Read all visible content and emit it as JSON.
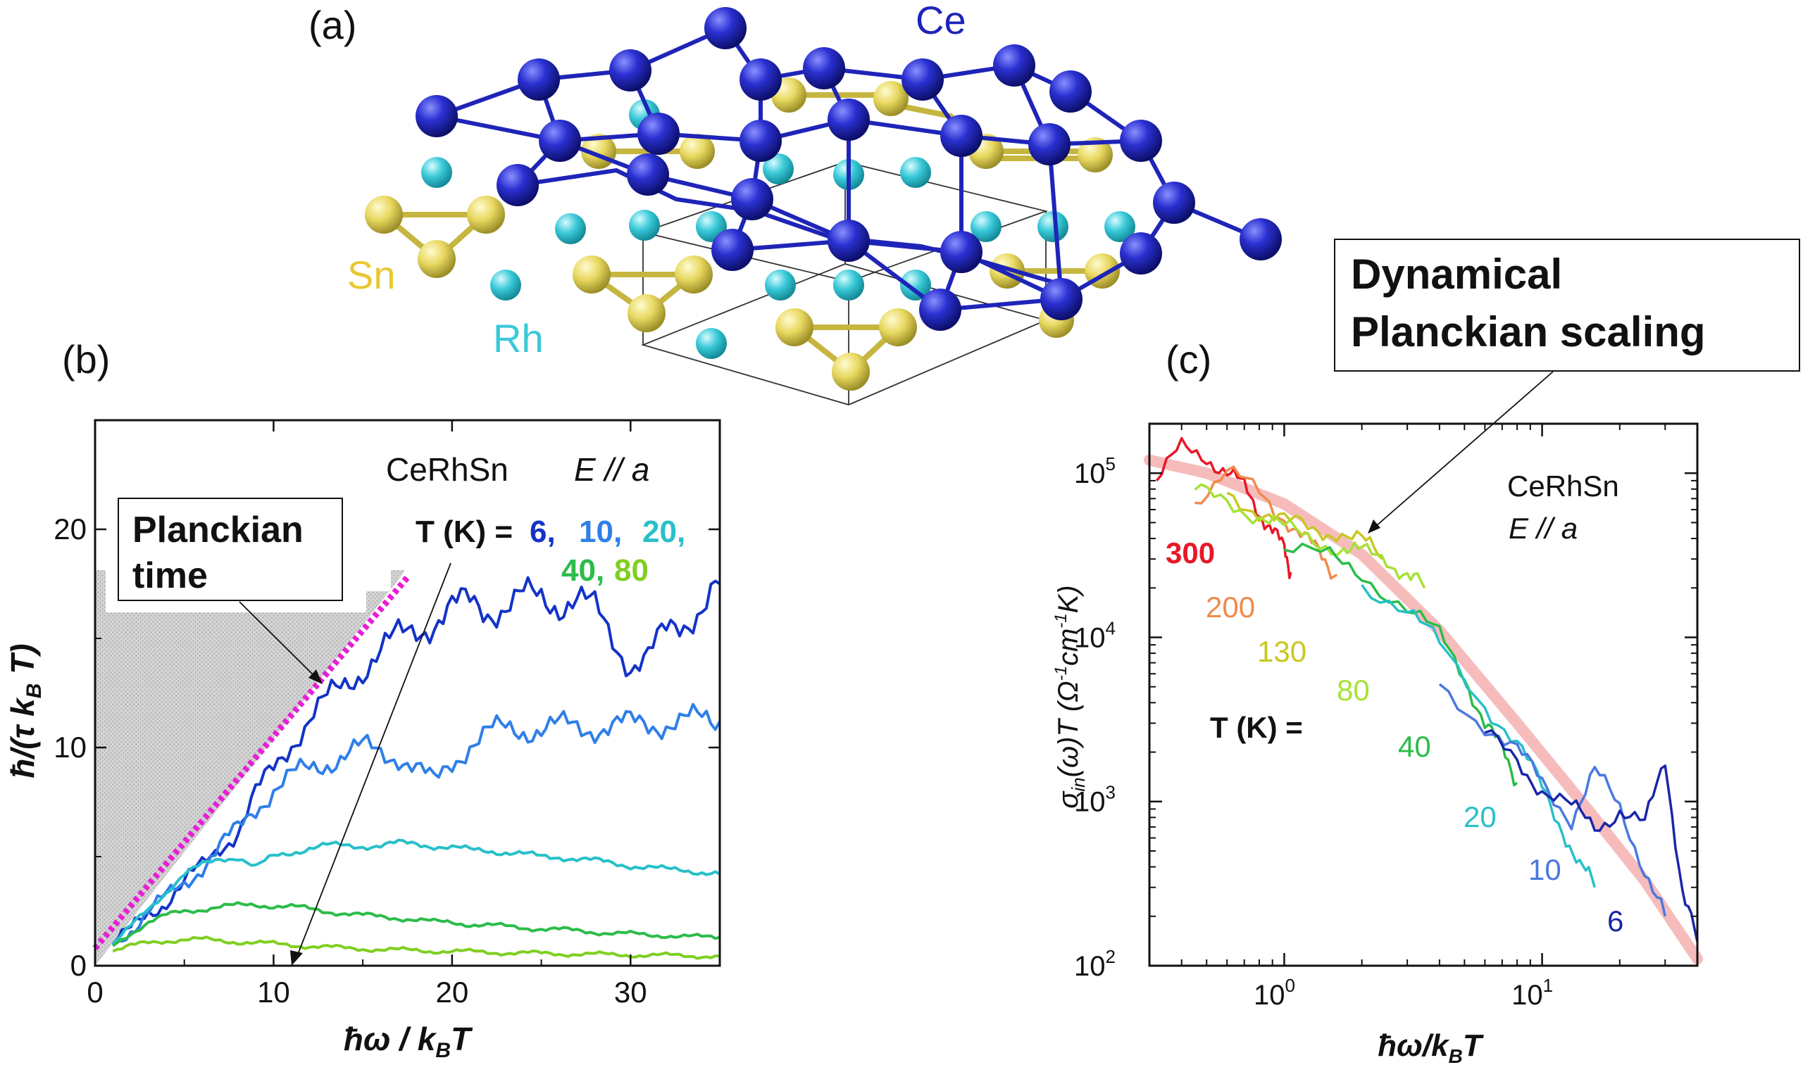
{
  "colors": {
    "Ce": "#1f24b8",
    "Sn": "#e8d860",
    "Rh": "#39c9d8",
    "T6": "#1433c8",
    "T10": "#2f7fe8",
    "T20": "#28c0c8",
    "T40": "#2cbc4a",
    "T80": "#7fcf22",
    "T130": "#c8c822",
    "T200": "#f08a4a",
    "T300": "#e81828",
    "planck": "#e81ed6",
    "fit": "#f4b0b0"
  },
  "panel_a": {
    "label": "(a)",
    "atoms": {
      "ce": "Ce",
      "sn": "Sn",
      "rh": "Rh"
    }
  },
  "panel_b": {
    "label": "(b)",
    "material": "CeRhSn",
    "field": "E // a",
    "temps_prefix": "T (K) =",
    "temps": [
      "6,",
      "10,",
      "20,",
      "40,",
      "80"
    ],
    "callout": [
      "Planckian",
      "time"
    ],
    "ylabel": "ħ/(τ k_B T)",
    "xlabel": "ħω / k_B T",
    "xticks": [
      "0",
      "10",
      "20",
      "30"
    ],
    "yticks": [
      "0",
      "10",
      "20"
    ]
  },
  "panel_c": {
    "label": "(c)",
    "material": "CeRhSn",
    "field": "E // a",
    "temps_prefix": "T (K) =",
    "temp_labels": [
      "300",
      "200",
      "130",
      "80",
      "40",
      "20",
      "10",
      "6"
    ],
    "callout": [
      "Dynamical",
      "Planckian scaling"
    ],
    "ylabel": "σin(ω)T (Ω⁻¹cm⁻¹K)",
    "xlabel": "ħω/k_B T",
    "xticks": [
      "10^0",
      "10^1"
    ],
    "yticks": [
      "10^2",
      "10^3",
      "10^4",
      "10^5"
    ]
  },
  "chart_data": [
    {
      "type": "line",
      "panel": "b",
      "xlabel": "ħω / k_B T",
      "ylabel": "ħ/(τ k_B T)",
      "xlim": [
        0,
        35
      ],
      "ylim": [
        0,
        25
      ],
      "legend": "T (K) = 6, 10, 20, 40, 80",
      "series": [
        {
          "name": "6",
          "color": "#1433c8",
          "x": [
            1,
            2,
            3,
            4,
            5,
            6,
            7,
            8,
            9,
            10,
            11,
            12,
            13,
            14,
            15,
            16,
            17,
            18,
            19,
            20,
            21,
            22,
            23,
            24,
            25,
            26,
            27,
            28,
            29,
            30,
            31,
            32,
            33,
            34,
            35
          ],
          "y": [
            1.0,
            1.6,
            2.4,
            3.0,
            3.8,
            4.5,
            5.5,
            6.2,
            7.8,
            9.0,
            10.3,
            11.3,
            12.1,
            12.9,
            13.7,
            14.4,
            15.0,
            15.5,
            15.8,
            16.3,
            16.6,
            16.4,
            16.5,
            16.8,
            16.8,
            16.7,
            16.9,
            16.2,
            15.0,
            13.9,
            14.1,
            15.2,
            15.8,
            16.6,
            17.5
          ]
        },
        {
          "name": "10",
          "color": "#2f7fe8",
          "x": [
            1,
            2,
            3,
            4,
            5,
            6,
            7,
            8,
            9,
            10,
            11,
            12,
            13,
            14,
            15,
            16,
            17,
            18,
            19,
            20,
            21,
            22,
            23,
            24,
            25,
            26,
            27,
            28,
            29,
            30,
            31,
            32,
            33,
            34,
            35
          ],
          "y": [
            1.0,
            1.7,
            2.5,
            3.1,
            3.8,
            4.6,
            5.4,
            6.2,
            7.3,
            8.1,
            8.6,
            9.0,
            9.4,
            9.7,
            9.9,
            9.8,
            9.7,
            9.0,
            8.3,
            9.4,
            10.2,
            10.6,
            10.8,
            10.9,
            10.9,
            10.9,
            10.9,
            11.0,
            11.0,
            11.0,
            11.1,
            11.2,
            11.2,
            11.2,
            11.2
          ]
        },
        {
          "name": "20",
          "color": "#28c0c8",
          "x": [
            1,
            2,
            3,
            4,
            5,
            6,
            7,
            8,
            9,
            10,
            11,
            12,
            13,
            14,
            15,
            16,
            17,
            18,
            19,
            20,
            21,
            22,
            23,
            24,
            25,
            26,
            27,
            28,
            29,
            30,
            31,
            32,
            33,
            34,
            35
          ],
          "y": [
            1.0,
            1.8,
            2.6,
            3.4,
            4.2,
            4.6,
            4.9,
            5.0,
            4.5,
            5.0,
            5.2,
            5.4,
            5.5,
            5.5,
            5.5,
            5.5,
            5.6,
            5.6,
            5.5,
            5.4,
            5.3,
            5.3,
            5.2,
            5.1,
            5.0,
            5.0,
            4.9,
            4.8,
            4.7,
            4.6,
            4.5,
            4.4,
            4.4,
            4.3,
            4.2
          ]
        },
        {
          "name": "40",
          "color": "#2cbc4a",
          "x": [
            1,
            2,
            3,
            4,
            5,
            6,
            7,
            8,
            9,
            10,
            11,
            12,
            13,
            14,
            15,
            16,
            17,
            18,
            19,
            20,
            21,
            22,
            23,
            24,
            25,
            26,
            27,
            28,
            29,
            30,
            31,
            32,
            33,
            34,
            35
          ],
          "y": [
            0.9,
            1.5,
            2.0,
            2.3,
            2.5,
            2.6,
            2.7,
            2.75,
            2.8,
            2.75,
            2.7,
            2.6,
            2.5,
            2.4,
            2.3,
            2.25,
            2.2,
            2.1,
            2.0,
            2.0,
            1.9,
            1.85,
            1.8,
            1.75,
            1.7,
            1.65,
            1.6,
            1.55,
            1.5,
            1.45,
            1.4,
            1.4,
            1.35,
            1.3,
            1.3
          ]
        },
        {
          "name": "80",
          "color": "#7fcf22",
          "x": [
            1,
            2,
            3,
            4,
            5,
            6,
            7,
            8,
            9,
            10,
            11,
            12,
            13,
            14,
            15,
            16,
            17,
            18,
            19,
            20,
            21,
            22,
            23,
            24,
            25,
            26,
            27,
            28,
            29,
            30,
            31,
            32,
            33,
            34,
            35
          ],
          "y": [
            0.7,
            0.9,
            1.05,
            1.15,
            1.2,
            1.2,
            1.15,
            1.1,
            1.05,
            1.0,
            0.95,
            0.9,
            0.85,
            0.8,
            0.78,
            0.75,
            0.72,
            0.7,
            0.68,
            0.66,
            0.64,
            0.62,
            0.6,
            0.58,
            0.56,
            0.55,
            0.54,
            0.52,
            0.5,
            0.5,
            0.48,
            0.47,
            0.46,
            0.45,
            0.44
          ]
        }
      ],
      "annotations": [
        {
          "text": "Planckian time",
          "type": "line_y_equals_x",
          "x": [
            0,
            17.5
          ],
          "y": [
            0.8,
            17.8
          ]
        }
      ]
    },
    {
      "type": "line",
      "panel": "c",
      "xscale": "log",
      "yscale": "log",
      "xlabel": "ħω/k_B T",
      "ylabel": "σin(ω)T (Ω⁻¹cm⁻¹K)",
      "xlim": [
        0.3,
        40
      ],
      "ylim": [
        100,
        200000
      ],
      "series": [
        {
          "name": "300",
          "color": "#e81828",
          "x": [
            0.32,
            0.4,
            0.5,
            0.6,
            0.7,
            0.8,
            0.9,
            1.0,
            1.06
          ],
          "y": [
            90000,
            140000,
            130000,
            100000,
            80000,
            60000,
            45000,
            33000,
            25000
          ]
        },
        {
          "name": "200",
          "color": "#f08a4a",
          "x": [
            0.45,
            0.6,
            0.8,
            1.0,
            1.2,
            1.4,
            1.6
          ],
          "y": [
            70000,
            100000,
            75000,
            55000,
            40000,
            30000,
            24000
          ]
        },
        {
          "name": "130",
          "color": "#c8c822",
          "x": [
            0.6,
            0.8,
            1.0,
            1.3,
            1.6,
            2.0,
            2.4
          ],
          "y": [
            75000,
            60000,
            50000,
            45000,
            45000,
            38000,
            30000
          ]
        },
        {
          "name": "80",
          "color": "#a6e234",
          "x": [
            0.45,
            0.6,
            0.8,
            1.0,
            1.3,
            1.7,
            2.0,
            2.5,
            3.0,
            3.5
          ],
          "y": [
            75000,
            70000,
            55000,
            45000,
            40000,
            35000,
            32000,
            30000,
            25000,
            20000
          ]
        },
        {
          "name": "40",
          "color": "#2cbc4a",
          "x": [
            1.0,
            1.5,
            2.0,
            3.0,
            4.0,
            5.0,
            6.0,
            7.0,
            8.0
          ],
          "y": [
            35000,
            30000,
            25000,
            15000,
            10000,
            6000,
            3000,
            2000,
            1300
          ]
        },
        {
          "name": "20",
          "color": "#28c0c8",
          "x": [
            2.0,
            3.0,
            4.0,
            6.0,
            8.0,
            10.0,
            12.0,
            14.0,
            16.0
          ],
          "y": [
            22000,
            14000,
            9000,
            4000,
            2200,
            1200,
            700,
            400,
            300
          ]
        },
        {
          "name": "10",
          "color": "#4a78e0",
          "x": [
            4.0,
            6.0,
            8.0,
            10.0,
            13.0,
            16.0,
            20.0,
            25.0,
            30.0
          ],
          "y": [
            5000,
            3000,
            2000,
            1300,
            800,
            1500,
            900,
            400,
            200
          ]
        },
        {
          "name": "6",
          "color": "#1a26a8",
          "x": [
            6.0,
            8.0,
            10.0,
            13.0,
            16.0,
            20.0,
            25.0,
            30.0,
            35.0,
            40.0
          ],
          "y": [
            2500,
            1800,
            1200,
            900,
            700,
            900,
            700,
            1800,
            300,
            140
          ]
        }
      ],
      "fit": {
        "x": [
          0.3,
          0.5,
          1.0,
          2.0,
          4.0,
          8.0,
          15.0,
          25.0,
          40.0
        ],
        "y": [
          120000,
          100000,
          65000,
          32000,
          11000,
          3000,
          900,
          330,
          110
        ]
      }
    }
  ]
}
